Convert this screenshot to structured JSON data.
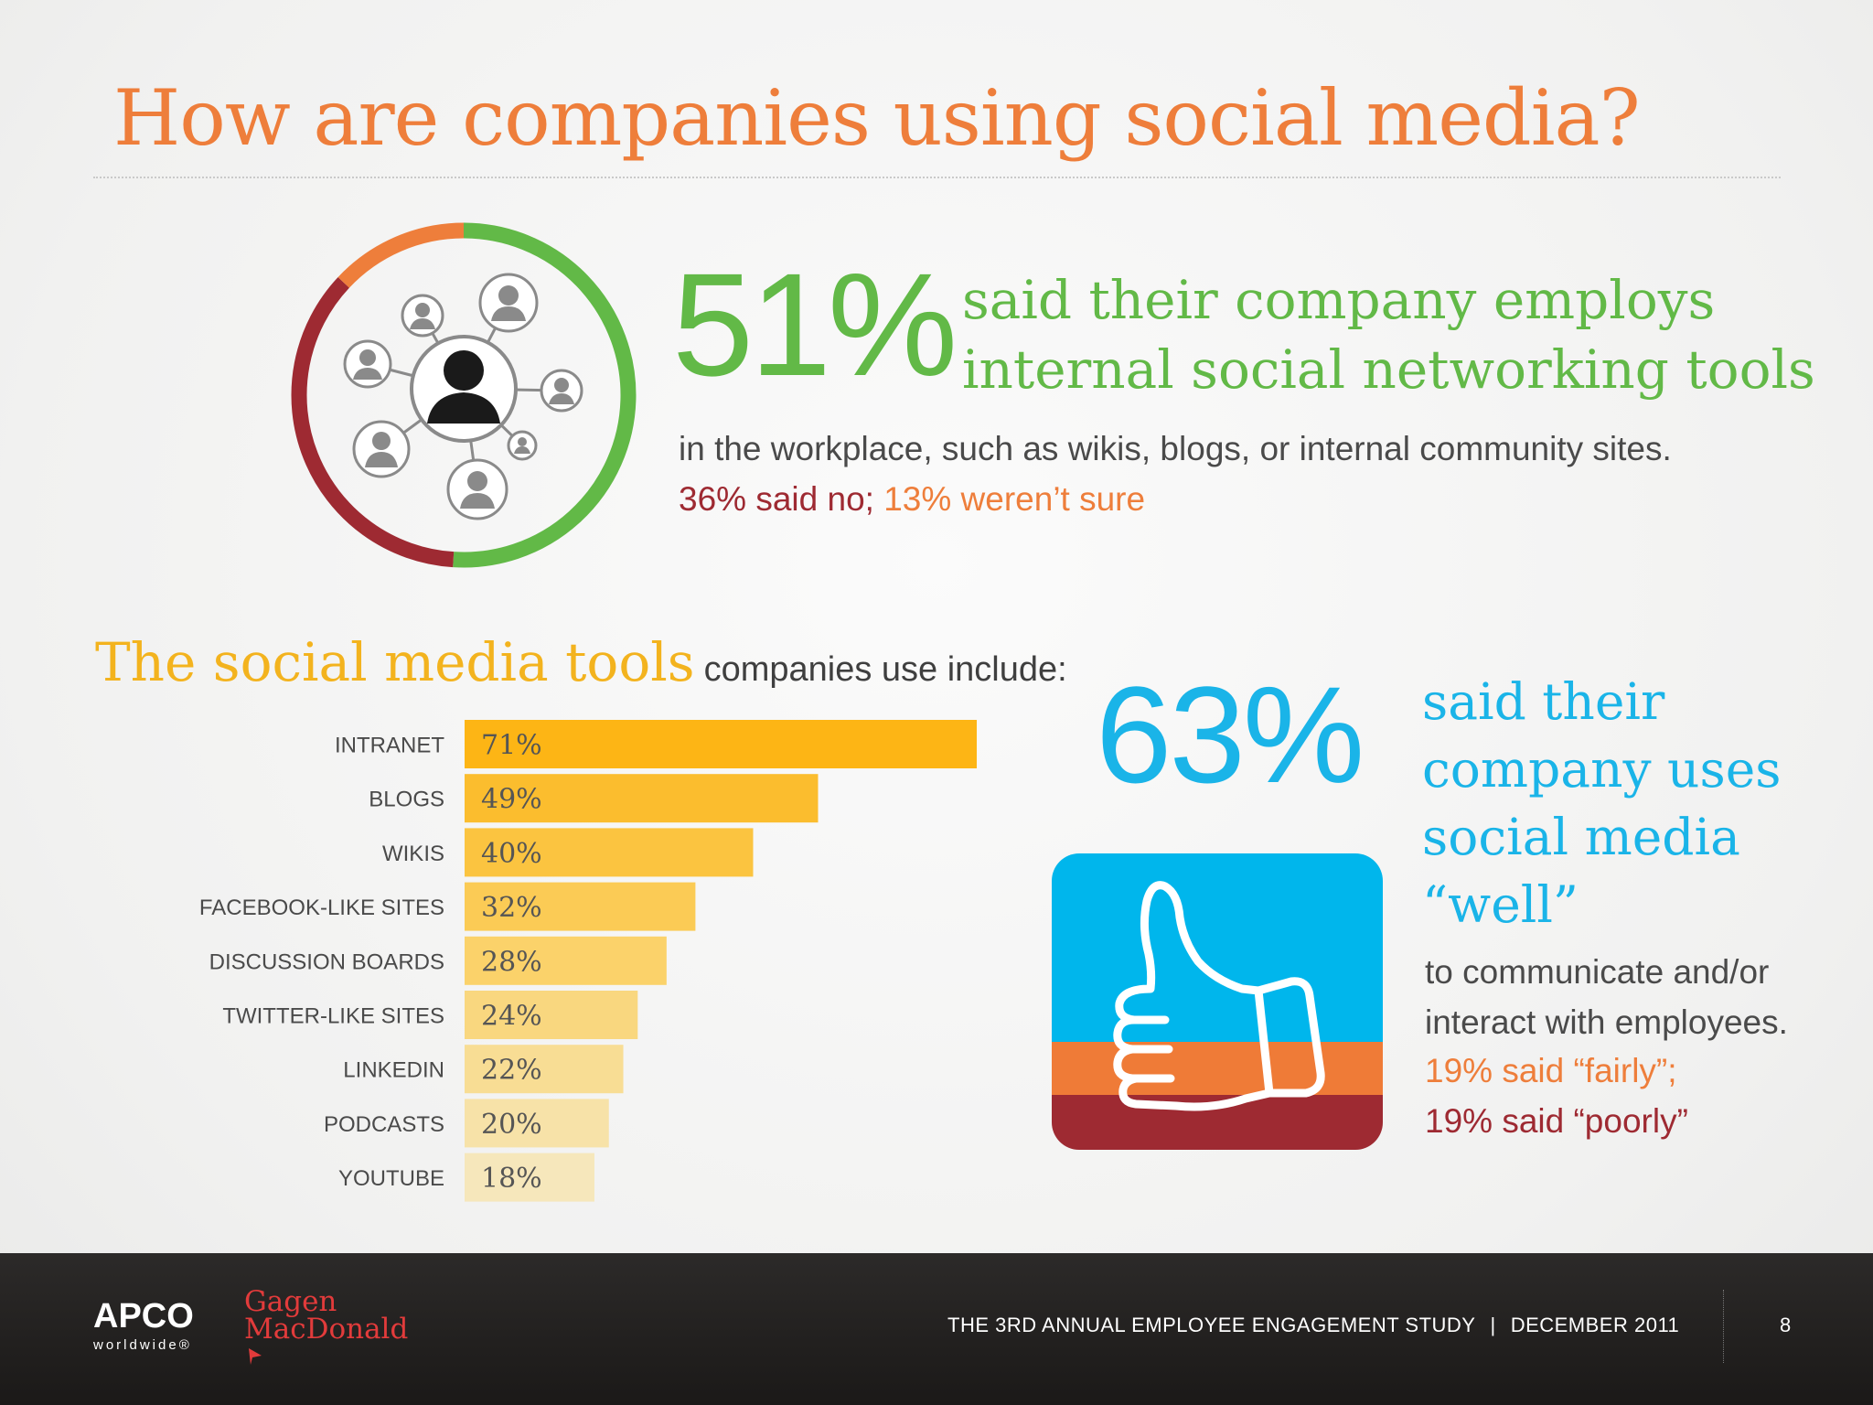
{
  "slide": {
    "title": "How are companies using social media?"
  },
  "stat_51": {
    "value": "51%",
    "lead_lines": [
      "said their company employs",
      "internal social networking tools"
    ],
    "body": "in the workplace, such as wikis, blogs, or internal community sites.",
    "note_no": "36% said no;",
    "note_unsure": "13% weren’t sure",
    "ring": {
      "yes": 51,
      "no": 36,
      "unsure": 13,
      "colors": {
        "yes": "#62b947",
        "no": "#9e2a32",
        "unsure": "#ee7e3b"
      }
    }
  },
  "tools_chart": {
    "title_highlight": "The social media tools",
    "title_rest": "companies use include:"
  },
  "chart_data": {
    "type": "bar",
    "orientation": "horizontal",
    "categories": [
      "INTRANET",
      "BLOGS",
      "WIKIS",
      "FACEBOOK-LIKE SITES",
      "DISCUSSION BOARDS",
      "TWITTER-LIKE SITES",
      "LINKEDIN",
      "PODCASTS",
      "YOUTUBE"
    ],
    "values": [
      71,
      49,
      40,
      32,
      28,
      24,
      22,
      20,
      18
    ],
    "value_labels": [
      "71%",
      "49%",
      "40%",
      "32%",
      "28%",
      "24%",
      "22%",
      "20%",
      "18%"
    ],
    "title": "The social media tools companies use include:",
    "xlim": [
      0,
      71
    ],
    "grid": false,
    "colors": [
      "#fdb515",
      "#fbbd2e",
      "#fbc440",
      "#fbcb55",
      "#fbd26a",
      "#f9d77f",
      "#f8dd94",
      "#f7e2a8",
      "#f6e7bb"
    ]
  },
  "stat_63": {
    "value": "63%",
    "lead_lines": [
      "said their",
      "company uses",
      "social media",
      "“well”"
    ],
    "body_lines": [
      "to communicate and/or",
      "interact with employees."
    ],
    "note_fairly": "19% said “fairly”;",
    "note_poorly": "19% said “poorly”",
    "colors": {
      "well": "#00b6ec",
      "fairly": "#ef7b37",
      "poorly": "#9e2a32"
    }
  },
  "footer": {
    "apco": "APCO",
    "apco_sub": "worldwide®",
    "gagen_line1": "Gagen",
    "gagen_line2": "MacDonald",
    "study": "THE 3RD ANNUAL EMPLOYEE ENGAGEMENT STUDY",
    "separator": "|",
    "date": "DECEMBER 2011",
    "page": "8"
  }
}
